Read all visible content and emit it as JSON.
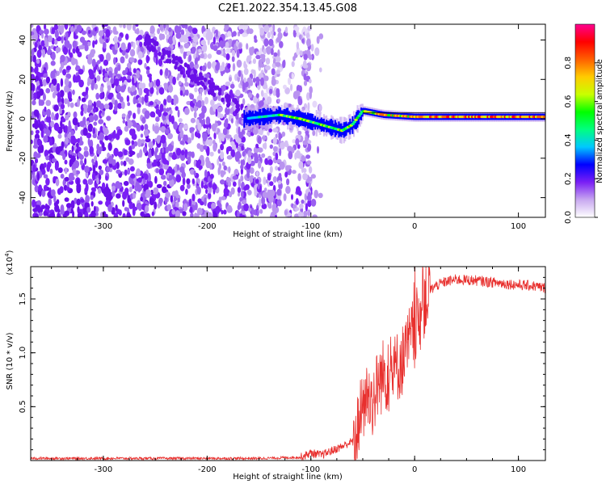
{
  "figure": {
    "title": "C2E1.2022.354.13.45.G08"
  },
  "chart_data": [
    {
      "type": "heatmap",
      "xlabel": "Height of straight line (km)",
      "ylabel": "Frequency (Hz)",
      "xlim": [
        -370,
        126
      ],
      "ylim": [
        -50,
        48
      ],
      "xticks": [
        "-300",
        "-200",
        "-100",
        "0",
        "100"
      ],
      "yticks": [
        "-40",
        "-20",
        "0",
        "20",
        "40"
      ],
      "colorbar": {
        "label": "Normalized spectral amplitude",
        "range": [
          0,
          1
        ],
        "ticks": [
          "0.0",
          "0.2",
          "0.4",
          "0.6",
          "0.8"
        ],
        "colors": [
          "#ffffff",
          "#c8a8f0",
          "#7a1ff5",
          "#0000ff",
          "#00c8ff",
          "#00ff80",
          "#00ff00",
          "#c8ff00",
          "#ffcc00",
          "#ff6000",
          "#ff0000",
          "#ff0090"
        ]
      },
      "signal_track": [
        {
          "x": -165,
          "y": 0
        },
        {
          "x": -130,
          "y": 2
        },
        {
          "x": -110,
          "y": 0
        },
        {
          "x": -90,
          "y": -3
        },
        {
          "x": -70,
          "y": -6
        },
        {
          "x": -60,
          "y": -3
        },
        {
          "x": -50,
          "y": 4
        },
        {
          "x": -30,
          "y": 2
        },
        {
          "x": 0,
          "y": 1
        },
        {
          "x": 50,
          "y": 1
        },
        {
          "x": 100,
          "y": 1
        },
        {
          "x": 126,
          "y": 1
        }
      ],
      "grid": false,
      "grid_note": "noise scattered at x < -90, strongest in lower-left"
    },
    {
      "type": "line",
      "xlabel": "Height of straight line (km)",
      "ylabel": "SNR (10 * v/v)",
      "multiplier": "(x10^4)",
      "multiplier_base": "(x10",
      "multiplier_exp": "4",
      "multiplier_close": ")",
      "xlim": [
        -370,
        126
      ],
      "ylim": [
        0,
        1.8
      ],
      "xticks": [
        "-300",
        "-200",
        "-100",
        "0",
        "100"
      ],
      "yticks": [
        "0.5",
        "1.0",
        "1.5"
      ],
      "series": [
        {
          "color": "#e8302e",
          "points": [
            [
              -370,
              0.02
            ],
            [
              -300,
              0.02
            ],
            [
              -200,
              0.02
            ],
            [
              -150,
              0.02
            ],
            [
              -110,
              0.03
            ],
            [
              -100,
              0.07
            ],
            [
              -90,
              0.05
            ],
            [
              -80,
              0.09
            ],
            [
              -70,
              0.13
            ],
            [
              -60,
              0.18
            ],
            [
              -55,
              0.3
            ],
            [
              -50,
              0.5
            ],
            [
              -45,
              0.6
            ],
            [
              -40,
              0.55
            ],
            [
              -35,
              0.72
            ],
            [
              -30,
              0.8
            ],
            [
              -25,
              0.78
            ],
            [
              -20,
              0.82
            ],
            [
              -15,
              0.9
            ],
            [
              -10,
              0.95
            ],
            [
              -5,
              1.1
            ],
            [
              0,
              1.2
            ],
            [
              5,
              1.35
            ],
            [
              10,
              1.5
            ],
            [
              15,
              1.58
            ],
            [
              20,
              1.62
            ],
            [
              30,
              1.66
            ],
            [
              40,
              1.68
            ],
            [
              60,
              1.67
            ],
            [
              80,
              1.65
            ],
            [
              100,
              1.63
            ],
            [
              115,
              1.62
            ],
            [
              126,
              1.6
            ]
          ]
        }
      ],
      "grid": false
    }
  ]
}
